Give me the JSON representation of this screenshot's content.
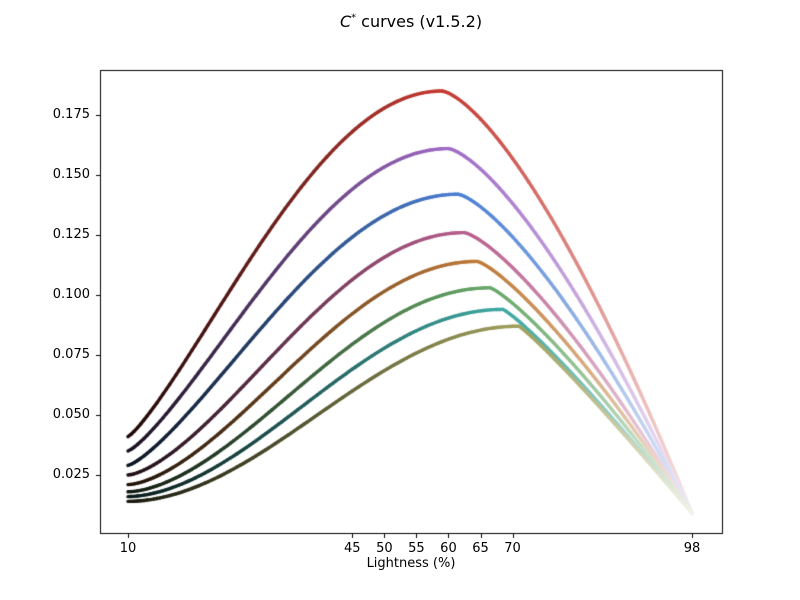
{
  "figure": {
    "title": {
      "var": "C",
      "sup": "*",
      "rest": " curves (v1.5.2)"
    },
    "background": "#ffffff"
  },
  "chart_data": {
    "type": "line",
    "title": "C* curves (v1.5.2)",
    "xlabel": "Lightness (%)",
    "ylabel": "",
    "xlim": [
      5.6,
      102.4
    ],
    "ylim": [
      -0.001,
      0.194
    ],
    "grid": false,
    "legend": "none",
    "x_ticks": [
      10,
      45,
      50,
      55,
      60,
      65,
      70,
      98
    ],
    "x_tick_labels": [
      "10",
      "45",
      "50",
      "55",
      "60",
      "65",
      "70",
      "98"
    ],
    "y_ticks": [
      0.025,
      0.05,
      0.075,
      0.1,
      0.125,
      0.15,
      0.175
    ],
    "y_tick_labels": [
      "0.025",
      "0.050",
      "0.075",
      "0.100",
      "0.125",
      "0.150",
      "0.175"
    ],
    "spine_color": "#000000",
    "series": [
      {
        "name": "hue-red",
        "color": "#c53a32",
        "start": {
          "x": 10,
          "y": 0.041
        },
        "peak": {
          "x": 59.0,
          "y": 0.185
        },
        "end": {
          "x": 98,
          "y": 0.009
        },
        "rise_exp": 1.2,
        "fall_exp": 1.45
      },
      {
        "name": "hue-purple",
        "color": "#a06bc6",
        "start": {
          "x": 10,
          "y": 0.035
        },
        "peak": {
          "x": 60.0,
          "y": 0.161
        },
        "end": {
          "x": 98,
          "y": 0.009
        },
        "rise_exp": 1.25,
        "fall_exp": 1.42
      },
      {
        "name": "hue-blue",
        "color": "#4b7fd4",
        "start": {
          "x": 10,
          "y": 0.029
        },
        "peak": {
          "x": 61.5,
          "y": 0.142
        },
        "end": {
          "x": 98,
          "y": 0.009
        },
        "rise_exp": 1.3,
        "fall_exp": 1.38
      },
      {
        "name": "hue-pink",
        "color": "#b85f8e",
        "start": {
          "x": 10,
          "y": 0.025
        },
        "peak": {
          "x": 62.5,
          "y": 0.126
        },
        "end": {
          "x": 98,
          "y": 0.009
        },
        "rise_exp": 1.5,
        "fall_exp": 1.34
      },
      {
        "name": "hue-orange",
        "color": "#bf7a38",
        "start": {
          "x": 10,
          "y": 0.021
        },
        "peak": {
          "x": 64.5,
          "y": 0.114
        },
        "end": {
          "x": 98,
          "y": 0.009
        },
        "rise_exp": 1.6,
        "fall_exp": 1.28
      },
      {
        "name": "hue-green",
        "color": "#68a869",
        "start": {
          "x": 10,
          "y": 0.018
        },
        "peak": {
          "x": 66.5,
          "y": 0.103
        },
        "end": {
          "x": 98,
          "y": 0.009
        },
        "rise_exp": 1.7,
        "fall_exp": 1.22
      },
      {
        "name": "hue-teal",
        "color": "#3fa8a2",
        "start": {
          "x": 10,
          "y": 0.016
        },
        "peak": {
          "x": 68.5,
          "y": 0.094
        },
        "end": {
          "x": 98,
          "y": 0.009
        },
        "rise_exp": 1.8,
        "fall_exp": 1.15
      },
      {
        "name": "hue-olive",
        "color": "#a0a15d",
        "start": {
          "x": 10,
          "y": 0.014
        },
        "peak": {
          "x": 71.0,
          "y": 0.087
        },
        "end": {
          "x": 98,
          "y": 0.009
        },
        "rise_exp": 1.9,
        "fall_exp": 1.1
      }
    ]
  }
}
